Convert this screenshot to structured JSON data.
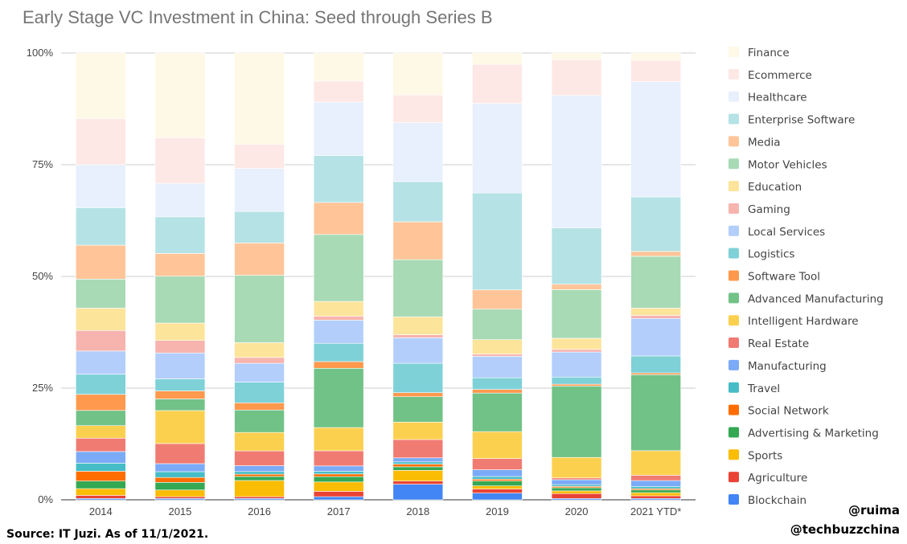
{
  "chart_data": {
    "type": "bar",
    "stacked": true,
    "normalized": true,
    "title": "Early Stage VC Investment in China: Seed through Series B",
    "xlabel": "",
    "ylabel": "",
    "ylim": [
      0,
      100
    ],
    "yticks": [
      "0%",
      "25%",
      "50%",
      "75%",
      "100%"
    ],
    "grid": true,
    "legend_position": "right",
    "categories": [
      "2014",
      "2015",
      "2016",
      "2017",
      "2018",
      "2019",
      "2020",
      "2021 YTD*"
    ],
    "series": [
      {
        "name": "Blockchain",
        "color": "#4285f4",
        "values": [
          0.3,
          0.3,
          0.3,
          0.7,
          3.5,
          1.5,
          0.3,
          0.3
        ]
      },
      {
        "name": "Agriculture",
        "color": "#ea4335",
        "values": [
          0.7,
          0.4,
          0.4,
          1.2,
          0.7,
          0.9,
          1.1,
          0.6
        ]
      },
      {
        "name": "Sports",
        "color": "#fbbc04",
        "values": [
          1.5,
          1.5,
          3.6,
          2.1,
          2.4,
          0.7,
          0.6,
          0.7
        ]
      },
      {
        "name": "Advertising & Marketing",
        "color": "#34a853",
        "values": [
          1.7,
          1.7,
          0.9,
          1.2,
          0.8,
          1.1,
          0.7,
          0.6
        ]
      },
      {
        "name": "Social Network",
        "color": "#ff6d01",
        "values": [
          2.2,
          1.1,
          0.5,
          0.6,
          0.6,
          0.4,
          0.3,
          0.3
        ]
      },
      {
        "name": "Travel",
        "color": "#46bdc6",
        "values": [
          1.8,
          1.3,
          0.6,
          0.6,
          0.5,
          0.6,
          0.4,
          0.5
        ]
      },
      {
        "name": "Manufacturing",
        "color": "#7baaf7",
        "values": [
          2.6,
          1.8,
          1.3,
          1.2,
          0.9,
          1.5,
          1.1,
          1.3
        ]
      },
      {
        "name": "Real Estate",
        "color": "#f07b72",
        "values": [
          3.0,
          4.5,
          3.3,
          3.4,
          4.1,
          2.5,
          0.4,
          1.2
        ]
      },
      {
        "name": "Intelligent Hardware",
        "color": "#fcd04f",
        "values": [
          2.8,
          7.4,
          4.1,
          5.2,
          3.9,
          6.0,
          4.6,
          5.5
        ]
      },
      {
        "name": "Advanced Manufacturing",
        "color": "#71c287",
        "values": [
          3.4,
          2.6,
          5.0,
          13.3,
          5.7,
          8.6,
          16.0,
          17.0
        ]
      },
      {
        "name": "Software Tool",
        "color": "#ff994d",
        "values": [
          3.6,
          1.8,
          1.6,
          1.5,
          0.9,
          0.8,
          0.4,
          0.4
        ]
      },
      {
        "name": "Logistics",
        "color": "#7ed1d7",
        "values": [
          4.5,
          2.7,
          4.6,
          4.1,
          6.6,
          2.6,
          1.6,
          3.8
        ]
      },
      {
        "name": "Local Services",
        "color": "#b3cefb",
        "values": [
          5.2,
          5.8,
          4.2,
          5.2,
          5.7,
          4.8,
          5.6,
          8.4
        ]
      },
      {
        "name": "Gaming",
        "color": "#f7b4ae",
        "values": [
          4.6,
          2.8,
          1.3,
          0.9,
          0.7,
          0.5,
          0.6,
          0.7
        ]
      },
      {
        "name": "Education",
        "color": "#fde49b",
        "values": [
          5.0,
          3.9,
          3.3,
          3.3,
          4.0,
          3.2,
          2.5,
          1.6
        ]
      },
      {
        "name": "Motor Vehicles",
        "color": "#a8dab5",
        "values": [
          6.5,
          10.5,
          15.0,
          15.0,
          12.8,
          6.8,
          10.9,
          11.6
        ]
      },
      {
        "name": "Media",
        "color": "#ffc599",
        "values": [
          7.6,
          5.1,
          7.2,
          7.2,
          8.5,
          4.3,
          1.2,
          1.1
        ]
      },
      {
        "name": "Enterprise Software",
        "color": "#b5e2e5",
        "values": [
          8.4,
          8.2,
          7.0,
          10.5,
          9.0,
          21.6,
          12.6,
          12.2
        ]
      },
      {
        "name": "Healthcare",
        "color": "#e8effd",
        "values": [
          9.6,
          7.5,
          9.6,
          12.0,
          13.2,
          20.0,
          29.7,
          25.8
        ]
      },
      {
        "name": "Ecommerce",
        "color": "#fde8e6",
        "values": [
          10.3,
          10.2,
          5.4,
          4.7,
          6.2,
          8.7,
          8.0,
          4.8
        ]
      },
      {
        "name": "Finance",
        "color": "#fef8e6",
        "values": [
          14.7,
          19.0,
          20.3,
          6.3,
          9.4,
          2.5,
          1.5,
          1.6
        ]
      }
    ]
  },
  "footer": {
    "source": "Source: IT Juzi. As of 11/1/2021.",
    "handle1": "@ruima",
    "handle2": "@techbuzzchina"
  }
}
